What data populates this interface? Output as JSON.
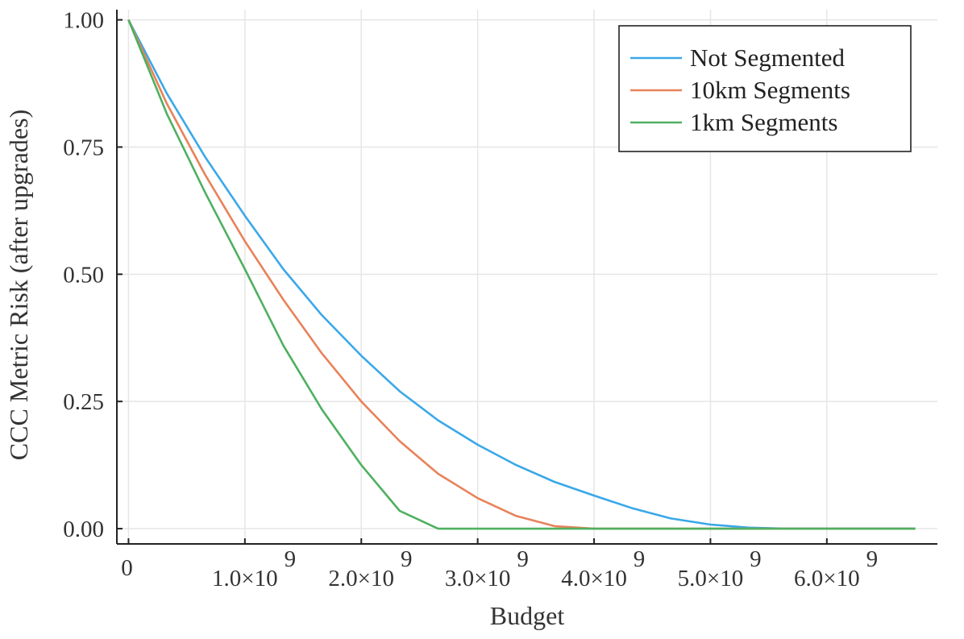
{
  "chart_data": {
    "type": "line",
    "title": "",
    "xlabel": "Budget",
    "ylabel": "CCC Metric Risk (after upgrades)",
    "xlim": [
      -100000000,
      6950000000
    ],
    "ylim": [
      -0.03,
      1.02
    ],
    "grid": true,
    "legend_position": "top-right",
    "x_ticks": [
      {
        "value": 0,
        "mantissa": "0",
        "exponent": ""
      },
      {
        "value": 1000000000,
        "mantissa": "1.0×10",
        "exponent": "9"
      },
      {
        "value": 2000000000,
        "mantissa": "2.0×10",
        "exponent": "9"
      },
      {
        "value": 3000000000,
        "mantissa": "3.0×10",
        "exponent": "9"
      },
      {
        "value": 4000000000,
        "mantissa": "4.0×10",
        "exponent": "9"
      },
      {
        "value": 5000000000,
        "mantissa": "5.0×10",
        "exponent": "9"
      },
      {
        "value": 6000000000,
        "mantissa": "6.0×10",
        "exponent": "9"
      }
    ],
    "y_ticks": [
      {
        "value": 0,
        "label": "0.00"
      },
      {
        "value": 0.25,
        "label": "0.25"
      },
      {
        "value": 0.5,
        "label": "0.50"
      },
      {
        "value": 0.75,
        "label": "0.75"
      },
      {
        "value": 1.0,
        "label": "1.00"
      }
    ],
    "x": [
      0,
      330000000,
      660000000,
      1000000000,
      1330000000,
      1660000000,
      2000000000,
      2330000000,
      2660000000,
      3000000000,
      3330000000,
      3660000000,
      4000000000,
      4330000000,
      4660000000,
      5000000000,
      5330000000,
      5660000000,
      6000000000,
      6330000000,
      6760000000
    ],
    "series": [
      {
        "name": "Not Segmented",
        "color": "#3aa8e8",
        "values": [
          1.0,
          0.855,
          0.73,
          0.615,
          0.51,
          0.42,
          0.34,
          0.27,
          0.213,
          0.165,
          0.125,
          0.092,
          0.065,
          0.04,
          0.02,
          0.008,
          0.002,
          0.0,
          0.0,
          0.0,
          0.0
        ]
      },
      {
        "name": "10km Segments",
        "color": "#e8825a",
        "values": [
          1.0,
          0.835,
          0.695,
          0.565,
          0.45,
          0.345,
          0.25,
          0.172,
          0.108,
          0.06,
          0.025,
          0.005,
          0.0,
          0.0,
          0.0,
          0.0,
          0.0,
          0.0,
          0.0,
          0.0,
          0.0
        ]
      },
      {
        "name": "1km Segments",
        "color": "#4fb060",
        "values": [
          1.0,
          0.815,
          0.66,
          0.51,
          0.36,
          0.235,
          0.125,
          0.035,
          0.0,
          0.0,
          0.0,
          0.0,
          0.0,
          0.0,
          0.0,
          0.0,
          0.0,
          0.0,
          0.0,
          0.0,
          0.0
        ]
      }
    ]
  }
}
